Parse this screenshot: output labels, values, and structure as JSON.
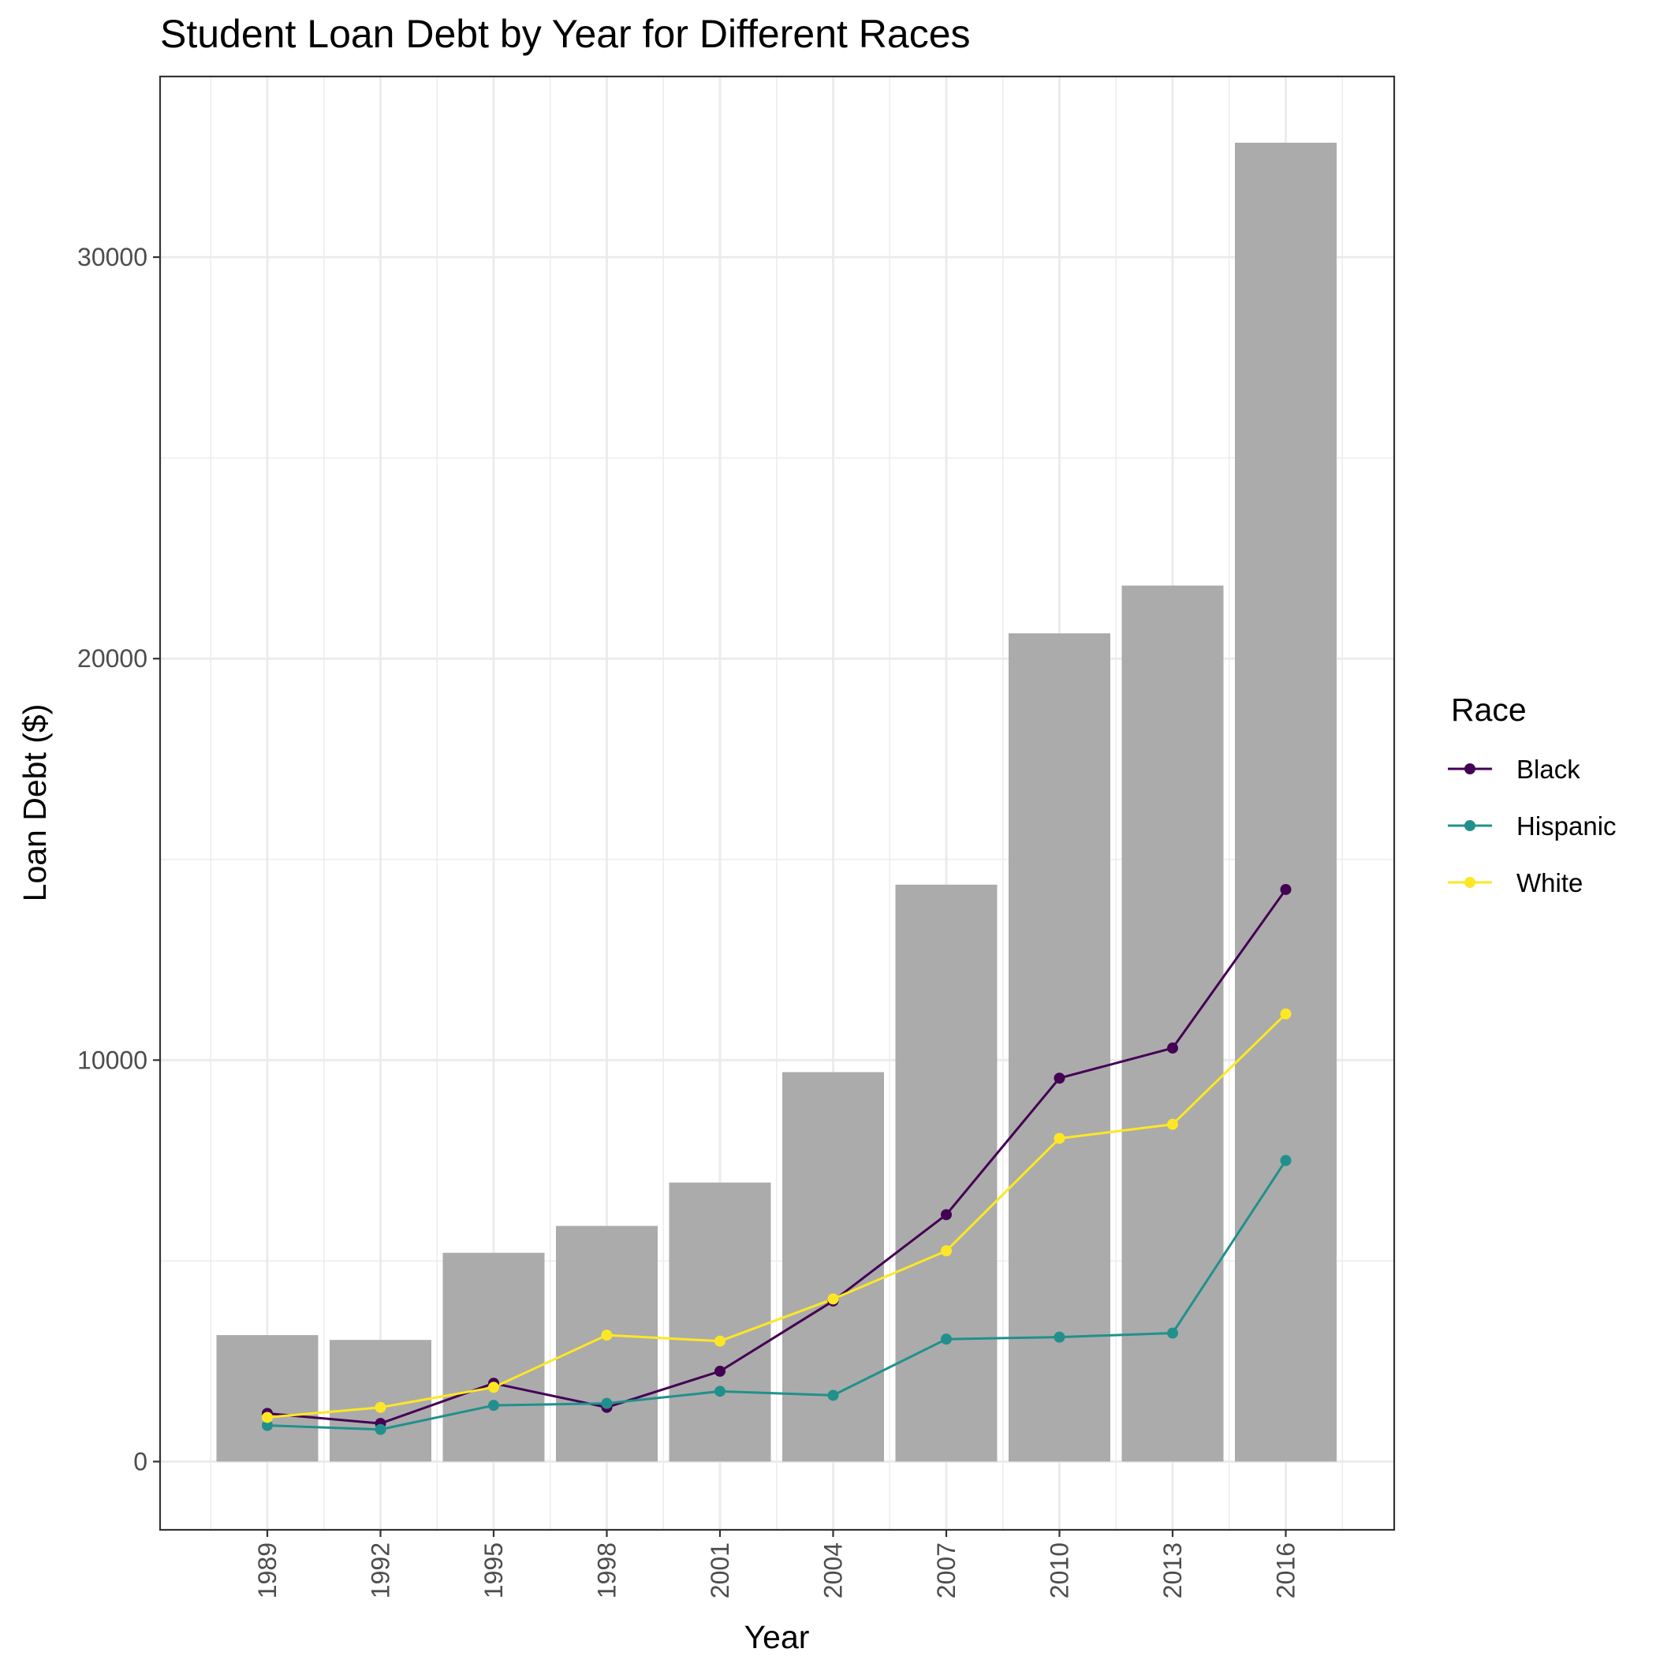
{
  "chart_data": {
    "type": "bar+line",
    "title": "Student Loan Debt by Year for Different Races",
    "xlabel": "Year",
    "ylabel": "Loan Debt ($)",
    "categories": [
      "1989",
      "1992",
      "1995",
      "1998",
      "2001",
      "2004",
      "2007",
      "2010",
      "2013",
      "2016"
    ],
    "bars": {
      "values": [
        3150,
        3030,
        5200,
        5870,
        6950,
        9700,
        14370,
        20630,
        21820,
        32850
      ],
      "color": "#ababab"
    },
    "series": [
      {
        "name": "Black",
        "color": "#440154",
        "values": [
          1200,
          950,
          1950,
          1350,
          2250,
          4000,
          6150,
          9550,
          10300,
          14250
        ]
      },
      {
        "name": "Hispanic",
        "color": "#21908c",
        "values": [
          900,
          800,
          1400,
          1450,
          1750,
          1650,
          3050,
          3100,
          3200,
          7500
        ]
      },
      {
        "name": "White",
        "color": "#fde725",
        "values": [
          1100,
          1350,
          1850,
          3150,
          3000,
          4050,
          5250,
          8050,
          8400,
          11150
        ]
      }
    ],
    "ylim": [
      -1700,
      34500
    ],
    "yticks": [
      0,
      10000,
      20000,
      30000
    ],
    "yticklabels": [
      "0",
      "10000",
      "20000",
      "30000"
    ],
    "grid": true,
    "legend": {
      "title": "Race",
      "position": "right"
    }
  }
}
